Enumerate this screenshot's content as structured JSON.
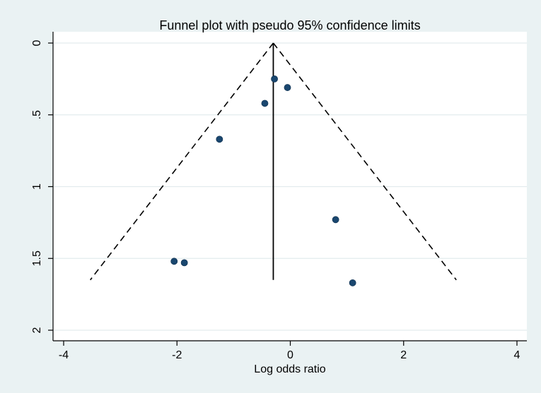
{
  "chart_data": {
    "type": "scatter",
    "title": "Funnel plot with pseudo 95% confidence limits",
    "xlabel": "Log odds ratio",
    "ylabel": "",
    "xlim": [
      -4,
      4
    ],
    "ylim": [
      0,
      2
    ],
    "y_reversed": true,
    "x_ticks": [
      -4,
      -2,
      0,
      2,
      4
    ],
    "x_tick_labels": [
      "-4",
      "-2",
      "0",
      "2",
      "4"
    ],
    "y_ticks": [
      0,
      0.5,
      1,
      1.5,
      2
    ],
    "y_tick_labels": [
      "0",
      ".5",
      "1",
      "1.5",
      "2"
    ],
    "grid": true,
    "points": [
      {
        "x": -0.28,
        "y": 0.25
      },
      {
        "x": -0.05,
        "y": 0.31
      },
      {
        "x": -0.45,
        "y": 0.42
      },
      {
        "x": -1.25,
        "y": 0.67
      },
      {
        "x": 0.8,
        "y": 1.23
      },
      {
        "x": -2.05,
        "y": 1.52
      },
      {
        "x": -1.87,
        "y": 1.53
      },
      {
        "x": 1.1,
        "y": 1.67
      }
    ],
    "pooled_effect": -0.3,
    "ci_lines": {
      "apex": {
        "x": -0.3,
        "y": 0
      },
      "left_end": {
        "x": -3.53,
        "y": 1.65
      },
      "right_end": {
        "x": 2.93,
        "y": 1.65
      }
    },
    "colors": {
      "background": "#eaf2f3",
      "plot_background": "#ffffff",
      "grid": "#e3ecee",
      "marker": "#1a476f",
      "lines": "#000000"
    }
  }
}
